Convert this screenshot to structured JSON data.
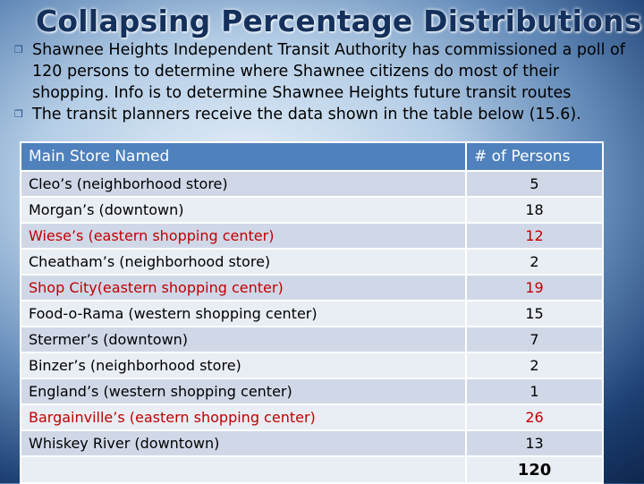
{
  "title": "Collapsing Percentage Distributions",
  "bullets": [
    "Shawnee Heights Independent Transit Authority has commissioned a poll of 120 persons to determine where Shawnee citizens do most of their shopping. Info is to determine Shawnee Heights future transit routes",
    "The transit planners receive the data shown in the table below (15.6)."
  ],
  "table": {
    "headers": [
      "Main Store Named",
      "# of Persons"
    ],
    "rows": [
      {
        "store": "Cleo’s (neighborhood store)",
        "persons": "5"
      },
      {
        "store": "Morgan’s (downtown)",
        "persons": "18"
      },
      {
        "store": "Wiese’s (eastern shopping center)",
        "persons": "12"
      },
      {
        "store": "Cheatham’s (neighborhood store)",
        "persons": "2"
      },
      {
        "store": "Shop City(eastern shopping center)",
        "persons": "19"
      },
      {
        "store": "Food-o-Rama (western shopping center)",
        "persons": "15"
      },
      {
        "store": "Stermer’s (downtown)",
        "persons": "7"
      },
      {
        "store": "Binzer’s (neighborhood store)",
        "persons": "2"
      },
      {
        "store": "England’s (western shopping center)",
        "persons": "1"
      },
      {
        "store": "Bargainville’s (eastern shopping center)",
        "persons": "26"
      },
      {
        "store": "Whiskey River (downtown)",
        "persons": "13"
      }
    ],
    "total": "120"
  },
  "colors": {
    "header_bg": "#4f81bd",
    "row_dark": "#d0d8e8",
    "row_light": "#e9edf4",
    "highlight_text": "#c00000",
    "title_text": "#14305c"
  },
  "icons": {
    "bullet": "bullet-square-icon"
  }
}
